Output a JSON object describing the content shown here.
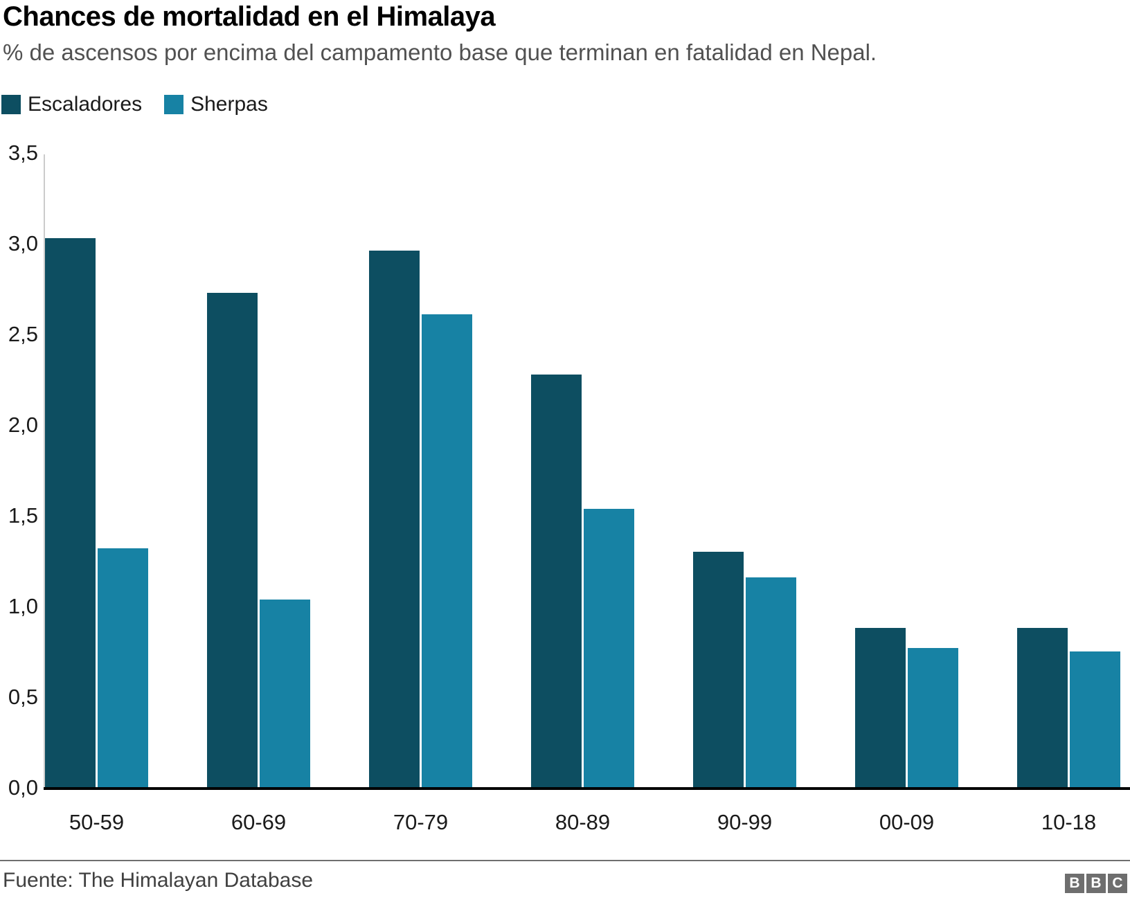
{
  "header": {
    "title": "Chances de mortalidad en el Himalaya",
    "subtitle": "% de ascensos por encima del campamento base que terminan en fatalidad en Nepal."
  },
  "legend": {
    "items": [
      {
        "label": "Escaladores",
        "color": "#0d4e61"
      },
      {
        "label": "Sherpas",
        "color": "#1782a4"
      }
    ]
  },
  "chart_data": {
    "type": "bar",
    "categories": [
      "50-59",
      "60-69",
      "70-79",
      "80-89",
      "90-99",
      "00-09",
      "10-18"
    ],
    "series": [
      {
        "name": "Escaladores",
        "color": "#0d4e61",
        "values": [
          3.03,
          2.73,
          2.96,
          2.28,
          1.3,
          0.88,
          0.88
        ]
      },
      {
        "name": "Sherpas",
        "color": "#1782a4",
        "values": [
          1.32,
          1.04,
          2.61,
          1.54,
          1.16,
          0.77,
          0.75
        ]
      }
    ],
    "title": "Chances de mortalidad en el Himalaya",
    "subtitle": "% de ascensos por encima del campamento base que terminan en fatalidad en Nepal.",
    "xlabel": "",
    "ylabel": "",
    "ylim": [
      0,
      3.5
    ],
    "yticks": [
      {
        "label": "0,0",
        "value": 0.0
      },
      {
        "label": "0,5",
        "value": 0.5
      },
      {
        "label": "1,0",
        "value": 1.0
      },
      {
        "label": "1,5",
        "value": 1.5
      },
      {
        "label": "2,0",
        "value": 2.0
      },
      {
        "label": "2,5",
        "value": 2.5
      },
      {
        "label": "3,0",
        "value": 3.0
      },
      {
        "label": "3,5",
        "value": 3.5
      }
    ],
    "grid": false,
    "legend_position": "top-left",
    "decimal_separator": ","
  },
  "footer": {
    "source": "Fuente: The Himalayan Database",
    "logo_letters": [
      "B",
      "B",
      "C"
    ]
  },
  "colors": {
    "bar_escaladores": "#0d4e61",
    "bar_sherpas": "#1782a4",
    "axis_line": "#cccccc",
    "baseline": "#000000",
    "subtitle_text": "#515151",
    "divider": "#6f6f6f",
    "logo_background": "#6e6e6e"
  }
}
